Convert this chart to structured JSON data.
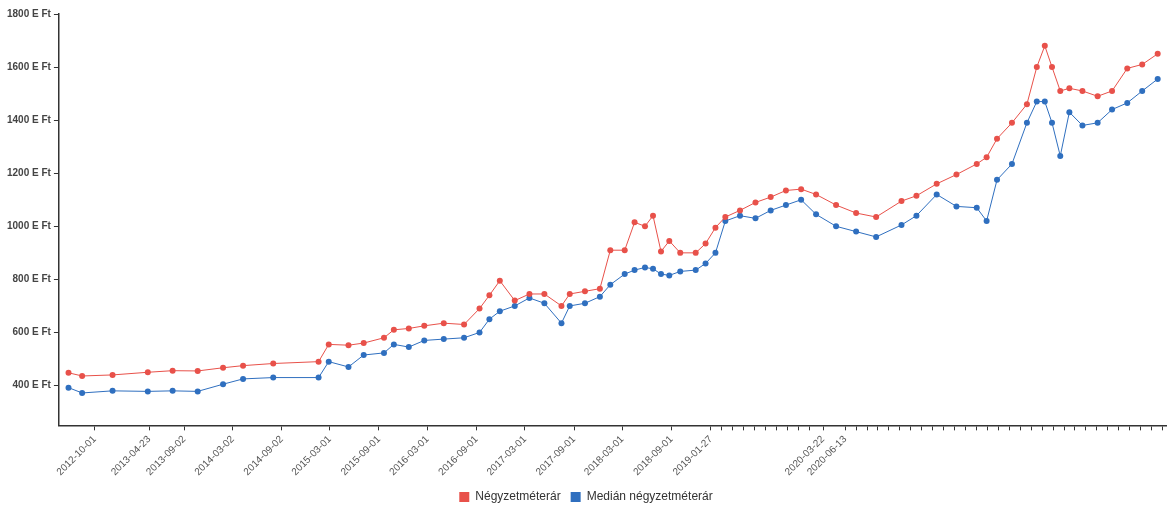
{
  "chart_data": {
    "type": "line",
    "marker": "circle",
    "grid": false,
    "legend": "bottom",
    "x": [
      "2012-06-25",
      "2012-08-15",
      "2012-12-07",
      "2013-04-18",
      "2013-07-20",
      "2013-10-22",
      "2014-01-25",
      "2014-04-10",
      "2014-08-01",
      "2015-01-18",
      "2015-02-25",
      "2015-05-10",
      "2015-07-06",
      "2015-09-20",
      "2015-10-27",
      "2015-12-22",
      "2016-02-18",
      "2016-05-01",
      "2016-07-16",
      "2016-09-12",
      "2016-10-19",
      "2016-11-27",
      "2017-01-22",
      "2017-03-18",
      "2017-05-13",
      "2017-07-16",
      "2017-08-16",
      "2017-10-12",
      "2017-12-07",
      "2018-01-15",
      "2018-03-10",
      "2018-04-16",
      "2018-05-25",
      "2018-06-24",
      "2018-07-24",
      "2018-08-24",
      "2018-10-04",
      "2018-12-01",
      "2019-01-07",
      "2019-02-13",
      "2019-03-22",
      "2019-05-16",
      "2019-07-13",
      "2019-09-08",
      "2019-11-04",
      "2019-12-31",
      "2020-02-25",
      "2020-05-10",
      "2020-07-24",
      "2020-10-07",
      "2021-01-10",
      "2021-03-07",
      "2021-05-22",
      "2021-08-04",
      "2021-10-19",
      "2021-11-25",
      "2022-01-03",
      "2022-02-28",
      "2022-04-25",
      "2022-06-01",
      "2022-07-01",
      "2022-07-28",
      "2022-08-28",
      "2022-10-01",
      "2022-11-19",
      "2023-01-15",
      "2023-03-10",
      "2023-05-06",
      "2023-07-01",
      "2023-08-28"
    ],
    "series": [
      {
        "name": "Négyzetméterár",
        "color": "#e8514a",
        "values": [
          448,
          436,
          440,
          450,
          456,
          455,
          467,
          475,
          483,
          490,
          555,
          552,
          560,
          580,
          610,
          615,
          625,
          635,
          630,
          690,
          740,
          795,
          720,
          745,
          745,
          700,
          745,
          755,
          765,
          910,
          910,
          1015,
          1000,
          1040,
          905,
          945,
          900,
          900,
          935,
          995,
          1035,
          1060,
          1090,
          1110,
          1135,
          1140,
          1120,
          1080,
          1050,
          1035,
          1095,
          1115,
          1160,
          1195,
          1235,
          1260,
          1330,
          1390,
          1460,
          1600,
          1680,
          1600,
          1510,
          1520,
          1510,
          1490,
          1510,
          1595,
          1610,
          1650
        ]
      },
      {
        "name": "Medián négyzetméterár",
        "color": "#2f6fbf",
        "values": [
          392,
          372,
          380,
          378,
          380,
          378,
          405,
          425,
          430,
          430,
          490,
          470,
          515,
          523,
          555,
          545,
          570,
          575,
          580,
          600,
          650,
          680,
          700,
          730,
          710,
          635,
          700,
          710,
          735,
          780,
          820,
          835,
          845,
          840,
          820,
          815,
          830,
          835,
          860,
          900,
          1020,
          1040,
          1030,
          1060,
          1080,
          1100,
          1045,
          1000,
          980,
          960,
          1005,
          1040,
          1120,
          1075,
          1070,
          1020,
          1175,
          1235,
          1390,
          1470,
          1470,
          1390,
          1265,
          1430,
          1380,
          1390,
          1440,
          1465,
          1510,
          1555
        ]
      }
    ],
    "xlim": [
      "2012-05-20",
      "2023-09-30"
    ],
    "xticks": [
      {
        "value": "2012-10-01",
        "label": "2012-10-01"
      },
      {
        "value": "2013-04-23",
        "label": "2013-04-23"
      },
      {
        "value": "2013-09-02",
        "label": "2013-09-02"
      },
      {
        "value": "2014-03-02",
        "label": "2014-03-02"
      },
      {
        "value": "2014-09-02",
        "label": "2014-09-02"
      },
      {
        "value": "2015-03-01",
        "label": "2015-03-01"
      },
      {
        "value": "2015-09-01",
        "label": "2015-09-01"
      },
      {
        "value": "2016-03-01",
        "label": "2016-03-01"
      },
      {
        "value": "2016-09-01",
        "label": "2016-09-01"
      },
      {
        "value": "2017-03-01",
        "label": "2017-03-01"
      },
      {
        "value": "2017-09-01",
        "label": "2017-09-01"
      },
      {
        "value": "2018-03-01",
        "label": "2018-03-01"
      },
      {
        "value": "2018-09-01",
        "label": "2018-09-01"
      },
      {
        "value": "2019-01-27",
        "label": "2019-01-27"
      },
      {
        "value": "2019-03-09",
        "label": null
      },
      {
        "value": "2019-04-19",
        "label": null
      },
      {
        "value": "2019-05-30",
        "label": null
      },
      {
        "value": "2019-07-10",
        "label": null
      },
      {
        "value": "2019-08-20",
        "label": null
      },
      {
        "value": "2019-09-30",
        "label": null
      },
      {
        "value": "2019-11-10",
        "label": null
      },
      {
        "value": "2019-12-21",
        "label": null
      },
      {
        "value": "2020-01-31",
        "label": null
      },
      {
        "value": "2020-03-22",
        "label": "2020-03-22"
      },
      {
        "value": "2020-06-13",
        "label": "2020-06-13"
      },
      {
        "value": "2020-07-24",
        "label": null
      },
      {
        "value": "2020-09-03",
        "label": null
      },
      {
        "value": "2020-10-14",
        "label": null
      },
      {
        "value": "2020-11-24",
        "label": null
      },
      {
        "value": "2021-01-04",
        "label": null
      },
      {
        "value": "2021-02-14",
        "label": null
      },
      {
        "value": "2021-03-27",
        "label": null
      },
      {
        "value": "2021-05-07",
        "label": null
      },
      {
        "value": "2021-06-17",
        "label": null
      },
      {
        "value": "2021-07-28",
        "label": null
      },
      {
        "value": "2021-09-07",
        "label": null
      },
      {
        "value": "2021-10-18",
        "label": null
      },
      {
        "value": "2021-11-28",
        "label": null
      },
      {
        "value": "2022-01-08",
        "label": null
      },
      {
        "value": "2022-02-18",
        "label": null
      },
      {
        "value": "2022-03-31",
        "label": null
      },
      {
        "value": "2022-05-11",
        "label": null
      },
      {
        "value": "2022-06-21",
        "label": null
      },
      {
        "value": "2022-08-01",
        "label": null
      },
      {
        "value": "2022-09-11",
        "label": null
      },
      {
        "value": "2022-10-22",
        "label": null
      },
      {
        "value": "2022-12-02",
        "label": null
      },
      {
        "value": "2023-01-12",
        "label": null
      },
      {
        "value": "2023-02-22",
        "label": null
      },
      {
        "value": "2023-04-04",
        "label": null
      },
      {
        "value": "2023-05-15",
        "label": null
      },
      {
        "value": "2023-06-25",
        "label": null
      },
      {
        "value": "2023-08-05",
        "label": null
      },
      {
        "value": "2023-09-15",
        "label": null
      }
    ],
    "ylim": [
      250,
      1800
    ],
    "yticks": [
      {
        "value": 400,
        "label": "400 E Ft"
      },
      {
        "value": 600,
        "label": "600 E Ft"
      },
      {
        "value": 800,
        "label": "800 E Ft"
      },
      {
        "value": 1000,
        "label": "1000 E Ft"
      },
      {
        "value": 1200,
        "label": "1200 E Ft"
      },
      {
        "value": 1400,
        "label": "1400 E Ft"
      },
      {
        "value": 1600,
        "label": "1600 E Ft"
      },
      {
        "value": 1800,
        "label": "1800 E Ft"
      }
    ]
  }
}
